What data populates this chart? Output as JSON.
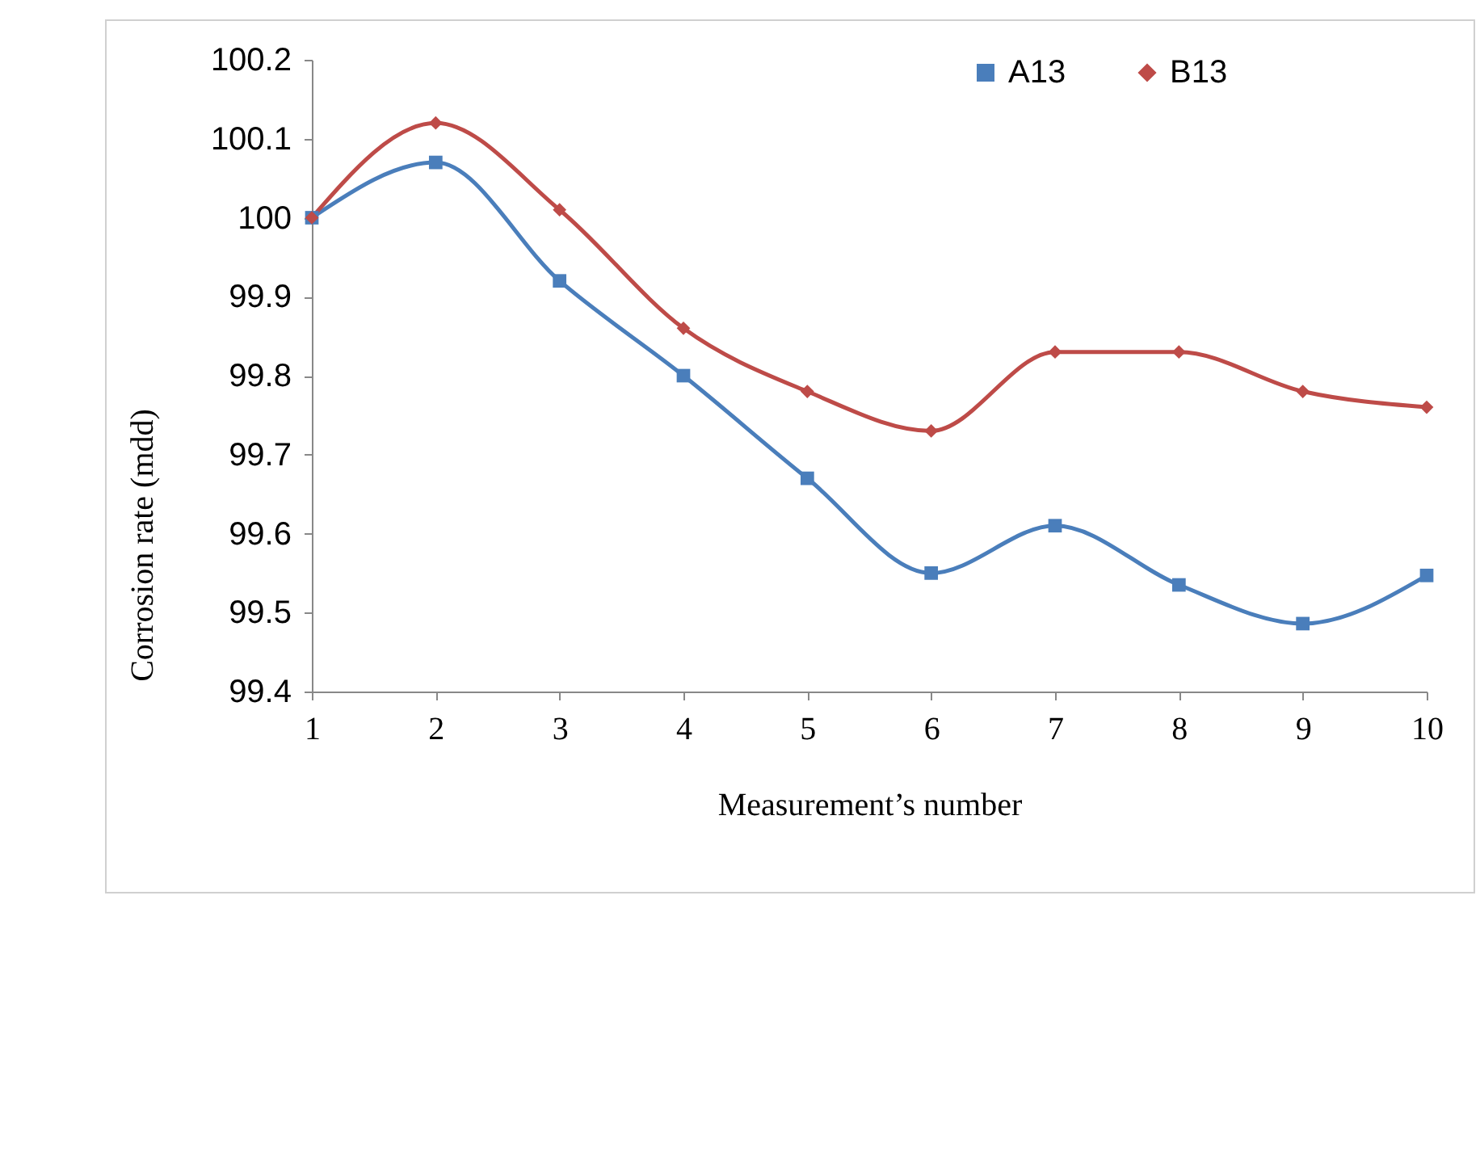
{
  "chart_data": {
    "type": "line",
    "xlabel": "Measurement’s number",
    "ylabel": "Corrosion rate (mdd)",
    "categories": [
      "1",
      "2",
      "3",
      "4",
      "5",
      "6",
      "7",
      "8",
      "9",
      "10"
    ],
    "ylim": [
      99.4,
      100.2
    ],
    "yticks": [
      99.4,
      99.5,
      99.6,
      99.7,
      99.8,
      99.9,
      100,
      100.1,
      100.2
    ],
    "legend": "top right",
    "series": [
      {
        "name": "A13",
        "color": "#4a7ebb",
        "marker": "square",
        "values": [
          100.0,
          100.07,
          99.92,
          99.8,
          99.67,
          99.55,
          99.61,
          99.535,
          99.486,
          99.547
        ]
      },
      {
        "name": "B13",
        "color": "#be4b48",
        "marker": "diamond",
        "values": [
          100.0,
          100.12,
          100.01,
          99.86,
          99.78,
          99.73,
          99.83,
          99.83,
          99.78,
          99.76
        ]
      }
    ]
  }
}
